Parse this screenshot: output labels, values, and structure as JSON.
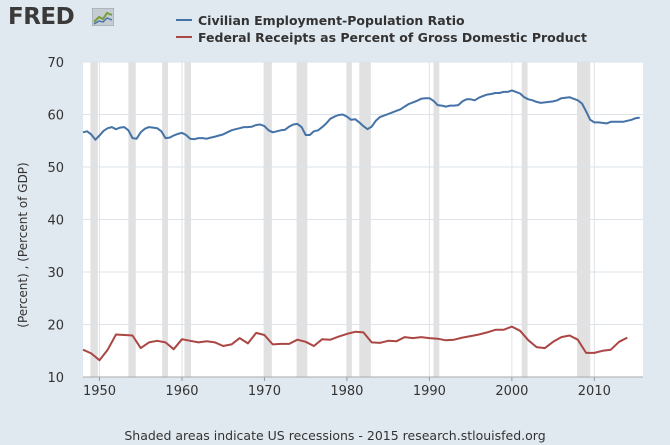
{
  "header": {
    "logo_text": "FRED",
    "logo_icon": "fred-chart-icon"
  },
  "footer": {
    "note": "Shaded areas indicate US recessions - 2015 research.stlouisfed.org"
  },
  "chart_data": {
    "type": "line",
    "ylabel": "(Percent) , (Percent of GDP)",
    "xlim": [
      1948,
      2015.9
    ],
    "ylim": [
      10,
      70
    ],
    "yticks": [
      10,
      20,
      30,
      40,
      50,
      60,
      70
    ],
    "xticks": [
      1950,
      1960,
      1970,
      1980,
      1990,
      2000,
      2010
    ],
    "grid": true,
    "legend_position": "top",
    "recessions": [
      [
        1948.9,
        1949.8
      ],
      [
        1953.5,
        1954.4
      ],
      [
        1957.6,
        1958.3
      ],
      [
        1960.3,
        1961.1
      ],
      [
        1969.9,
        1970.9
      ],
      [
        1973.9,
        1975.2
      ],
      [
        1980.0,
        1980.6
      ],
      [
        1981.5,
        1982.9
      ],
      [
        1990.5,
        1991.2
      ],
      [
        2001.2,
        2001.9
      ],
      [
        2007.9,
        2009.5
      ]
    ],
    "series": [
      {
        "name": "Civilian Employment-Population Ratio",
        "color": "#4572a7",
        "x": [
          1948.0,
          1948.5,
          1949.0,
          1949.5,
          1950.0,
          1950.5,
          1951.0,
          1951.5,
          1952.0,
          1952.5,
          1953.0,
          1953.5,
          1954.0,
          1954.5,
          1955.0,
          1955.5,
          1956.0,
          1956.5,
          1957.0,
          1957.5,
          1958.0,
          1958.5,
          1959.0,
          1959.5,
          1960.0,
          1960.5,
          1961.0,
          1961.5,
          1962.0,
          1962.5,
          1963.0,
          1963.5,
          1964.0,
          1964.5,
          1965.0,
          1965.5,
          1966.0,
          1966.5,
          1967.0,
          1967.5,
          1968.0,
          1968.5,
          1969.0,
          1969.5,
          1970.0,
          1970.5,
          1971.0,
          1971.5,
          1972.0,
          1972.5,
          1973.0,
          1973.5,
          1974.0,
          1974.5,
          1975.0,
          1975.5,
          1976.0,
          1976.5,
          1977.0,
          1977.5,
          1978.0,
          1978.5,
          1979.0,
          1979.5,
          1980.0,
          1980.5,
          1981.0,
          1981.5,
          1982.0,
          1982.5,
          1983.0,
          1983.5,
          1984.0,
          1984.5,
          1985.0,
          1985.5,
          1986.0,
          1986.5,
          1987.0,
          1987.5,
          1988.0,
          1988.5,
          1989.0,
          1989.5,
          1990.0,
          1990.5,
          1991.0,
          1991.5,
          1992.0,
          1992.5,
          1993.0,
          1993.5,
          1994.0,
          1994.5,
          1995.0,
          1995.5,
          1996.0,
          1996.5,
          1997.0,
          1997.5,
          1998.0,
          1998.5,
          1999.0,
          1999.5,
          2000.0,
          2000.5,
          2001.0,
          2001.5,
          2002.0,
          2002.5,
          2003.0,
          2003.5,
          2004.0,
          2004.5,
          2005.0,
          2005.5,
          2006.0,
          2006.5,
          2007.0,
          2007.5,
          2008.0,
          2008.5,
          2009.0,
          2009.5,
          2010.0,
          2010.5,
          2011.0,
          2011.5,
          2012.0,
          2012.5,
          2013.0,
          2013.5,
          2014.0,
          2014.5,
          2015.0,
          2015.5
        ],
        "values": [
          56.6,
          56.8,
          56.2,
          55.2,
          56.0,
          56.9,
          57.4,
          57.6,
          57.2,
          57.5,
          57.6,
          57.0,
          55.5,
          55.4,
          56.6,
          57.3,
          57.6,
          57.5,
          57.4,
          56.8,
          55.5,
          55.6,
          56.0,
          56.3,
          56.5,
          56.1,
          55.4,
          55.3,
          55.5,
          55.5,
          55.4,
          55.6,
          55.8,
          56.0,
          56.2,
          56.6,
          57.0,
          57.2,
          57.4,
          57.6,
          57.6,
          57.7,
          58.0,
          58.1,
          57.8,
          57.0,
          56.6,
          56.8,
          57.0,
          57.1,
          57.7,
          58.1,
          58.2,
          57.6,
          56.1,
          56.1,
          56.8,
          57.0,
          57.6,
          58.3,
          59.2,
          59.6,
          59.9,
          60.0,
          59.6,
          59.0,
          59.1,
          58.5,
          57.8,
          57.2,
          57.7,
          58.8,
          59.5,
          59.8,
          60.1,
          60.4,
          60.7,
          61.0,
          61.5,
          62.0,
          62.3,
          62.6,
          63.0,
          63.1,
          63.1,
          62.6,
          61.8,
          61.7,
          61.5,
          61.7,
          61.7,
          61.8,
          62.5,
          62.9,
          62.9,
          62.7,
          63.2,
          63.5,
          63.8,
          63.9,
          64.1,
          64.1,
          64.3,
          64.3,
          64.6,
          64.3,
          64.0,
          63.3,
          62.9,
          62.7,
          62.4,
          62.2,
          62.3,
          62.4,
          62.5,
          62.7,
          63.1,
          63.2,
          63.3,
          63.0,
          62.7,
          62.1,
          60.6,
          59.0,
          58.5,
          58.5,
          58.4,
          58.3,
          58.6,
          58.6,
          58.6,
          58.6,
          58.8,
          59.0,
          59.3,
          59.4
        ]
      },
      {
        "name": "Federal Receipts as Percent of Gross Domestic Product",
        "color": "#aa4643",
        "x": [
          1948,
          1949,
          1950,
          1951,
          1952,
          1953,
          1954,
          1955,
          1956,
          1957,
          1958,
          1959,
          1960,
          1961,
          1962,
          1963,
          1964,
          1965,
          1966,
          1967,
          1968,
          1969,
          1970,
          1971,
          1972,
          1973,
          1974,
          1975,
          1976,
          1977,
          1978,
          1979,
          1980,
          1981,
          1982,
          1983,
          1984,
          1985,
          1986,
          1987,
          1988,
          1989,
          1990,
          1991,
          1992,
          1993,
          1994,
          1995,
          1996,
          1997,
          1998,
          1999,
          2000,
          2001,
          2002,
          2003,
          2004,
          2005,
          2006,
          2007,
          2008,
          2009,
          2010,
          2011,
          2012,
          2013,
          2014
        ],
        "values": [
          15.2,
          14.5,
          13.2,
          15.2,
          18.1,
          18.0,
          17.9,
          15.5,
          16.6,
          16.9,
          16.6,
          15.3,
          17.2,
          16.9,
          16.6,
          16.8,
          16.6,
          15.9,
          16.2,
          17.4,
          16.4,
          18.4,
          18.0,
          16.2,
          16.3,
          16.3,
          17.1,
          16.7,
          15.9,
          17.2,
          17.1,
          17.7,
          18.2,
          18.6,
          18.5,
          16.6,
          16.5,
          16.9,
          16.8,
          17.6,
          17.4,
          17.6,
          17.4,
          17.3,
          17.0,
          17.1,
          17.5,
          17.8,
          18.1,
          18.5,
          19.0,
          19.0,
          19.6,
          18.8,
          17.0,
          15.7,
          15.5,
          16.7,
          17.6,
          17.9,
          17.1,
          14.6,
          14.6,
          15.0,
          15.2,
          16.7,
          17.5
        ]
      }
    ]
  }
}
